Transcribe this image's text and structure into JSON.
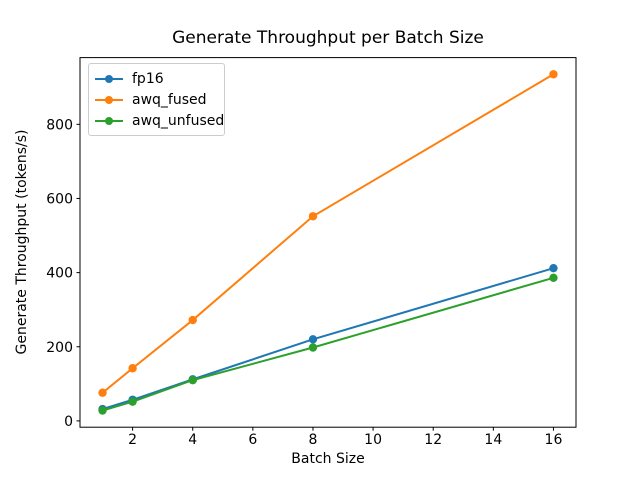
{
  "figure": {
    "background": "#ffffff",
    "axis_color": "#000000",
    "legend_border_color": "#cccccc"
  },
  "chart_data": {
    "type": "line",
    "title": "Generate Throughput per Batch Size",
    "xlabel": "Batch Size",
    "ylabel": "Generate Throughput (tokens/s)",
    "x": [
      1,
      2,
      4,
      8,
      16
    ],
    "series": [
      {
        "name": "fp16",
        "color": "#1f77b4",
        "values": [
          32,
          57,
          112,
          220,
          412
        ]
      },
      {
        "name": "awq_fused",
        "color": "#ff7f0e",
        "values": [
          76,
          142,
          272,
          552,
          935
        ]
      },
      {
        "name": "awq_unfused",
        "color": "#2ca02c",
        "values": [
          28,
          52,
          110,
          198,
          386
        ]
      }
    ],
    "xlim": [
      0.25,
      16.75
    ],
    "ylim": [
      -17,
      980
    ],
    "xticks": [
      2,
      4,
      6,
      8,
      10,
      12,
      14,
      16
    ],
    "yticks": [
      0,
      200,
      400,
      600,
      800
    ],
    "grid": false,
    "legend_position": "upper left",
    "marker": "o"
  }
}
